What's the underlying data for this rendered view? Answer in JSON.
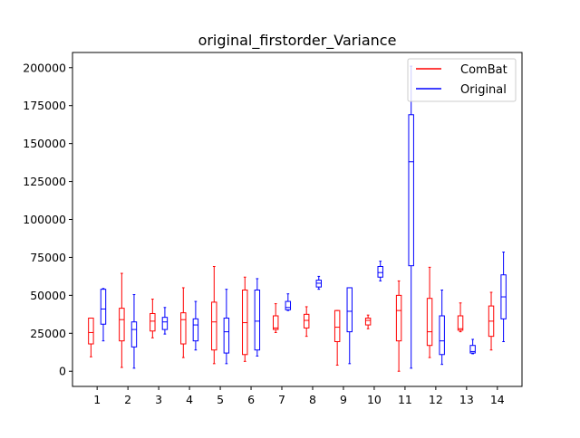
{
  "chart_data": {
    "type": "box",
    "title": "original_firstorder_Variance",
    "xlabel": "",
    "ylabel": "",
    "categories": [
      "1",
      "2",
      "3",
      "4",
      "5",
      "6",
      "7",
      "8",
      "9",
      "10",
      "11",
      "12",
      "13",
      "14"
    ],
    "ylim": [
      -10000,
      210000
    ],
    "yticks": [
      0,
      25000,
      50000,
      75000,
      100000,
      125000,
      150000,
      175000,
      200000
    ],
    "ytick_labels": [
      "0",
      "25000",
      "50000",
      "75000",
      "100000",
      "125000",
      "150000",
      "175000",
      "200000"
    ],
    "legend_position": "top-right",
    "series": [
      {
        "name": "ComBat",
        "color": "#ff0000",
        "boxes": [
          {
            "whislo": 9500,
            "q1": 18000,
            "med": 25500,
            "q3": 35000,
            "whishi": 35000
          },
          {
            "whislo": 2500,
            "q1": 20000,
            "med": 34000,
            "q3": 41500,
            "whishi": 64500
          },
          {
            "whislo": 22000,
            "q1": 26500,
            "med": 33000,
            "q3": 38000,
            "whishi": 47500
          },
          {
            "whislo": 9000,
            "q1": 18000,
            "med": 34000,
            "q3": 38500,
            "whishi": 55000
          },
          {
            "whislo": 5000,
            "q1": 14000,
            "med": 32500,
            "q3": 45500,
            "whishi": 69000
          },
          {
            "whislo": 6500,
            "q1": 11000,
            "med": 32000,
            "q3": 53500,
            "whishi": 62000
          },
          {
            "whislo": 25500,
            "q1": 27500,
            "med": 28500,
            "q3": 36500,
            "whishi": 44500
          },
          {
            "whislo": 23000,
            "q1": 28500,
            "med": 33500,
            "q3": 37500,
            "whishi": 42500
          },
          {
            "whislo": 4000,
            "q1": 19500,
            "med": 29000,
            "q3": 40000,
            "whishi": 40000
          },
          {
            "whislo": 28000,
            "q1": 30500,
            "med": 33500,
            "q3": 35000,
            "whishi": 37000
          },
          {
            "whislo": 0,
            "q1": 20000,
            "med": 40000,
            "q3": 50000,
            "whishi": 59500
          },
          {
            "whislo": 9000,
            "q1": 17000,
            "med": 26000,
            "q3": 48000,
            "whishi": 68500
          },
          {
            "whislo": 26000,
            "q1": 27000,
            "med": 28000,
            "q3": 36500,
            "whishi": 45000
          },
          {
            "whislo": 14000,
            "q1": 23000,
            "med": 33000,
            "q3": 43000,
            "whishi": 52000
          }
        ]
      },
      {
        "name": "Original",
        "color": "#0000ff",
        "boxes": [
          {
            "whislo": 20000,
            "q1": 31000,
            "med": 41000,
            "q3": 54000,
            "whishi": 54500
          },
          {
            "whislo": 2000,
            "q1": 16000,
            "med": 27500,
            "q3": 32500,
            "whishi": 50500
          },
          {
            "whislo": 24500,
            "q1": 27500,
            "med": 32500,
            "q3": 35500,
            "whishi": 42000
          },
          {
            "whislo": 14000,
            "q1": 20000,
            "med": 30500,
            "q3": 34500,
            "whishi": 46000
          },
          {
            "whislo": 5000,
            "q1": 12000,
            "med": 26000,
            "q3": 35000,
            "whishi": 54000
          },
          {
            "whislo": 10000,
            "q1": 14000,
            "med": 33000,
            "q3": 53500,
            "whishi": 61000
          },
          {
            "whislo": 40000,
            "q1": 40500,
            "med": 42000,
            "q3": 46000,
            "whishi": 51000
          },
          {
            "whislo": 54000,
            "q1": 55500,
            "med": 58000,
            "q3": 60000,
            "whishi": 62500
          },
          {
            "whislo": 5000,
            "q1": 26000,
            "med": 39500,
            "q3": 55000,
            "whishi": 55000
          },
          {
            "whislo": 59500,
            "q1": 62000,
            "med": 65000,
            "q3": 69000,
            "whishi": 72500
          },
          {
            "whislo": 2000,
            "q1": 69500,
            "med": 138000,
            "q3": 169000,
            "whishi": 201000
          },
          {
            "whislo": 4500,
            "q1": 11000,
            "med": 20000,
            "q3": 36500,
            "whishi": 53500
          },
          {
            "whislo": 11500,
            "q1": 12000,
            "med": 13000,
            "q3": 17000,
            "whishi": 21000
          },
          {
            "whislo": 19500,
            "q1": 34500,
            "med": 49000,
            "q3": 63500,
            "whishi": 78500
          }
        ]
      }
    ]
  }
}
